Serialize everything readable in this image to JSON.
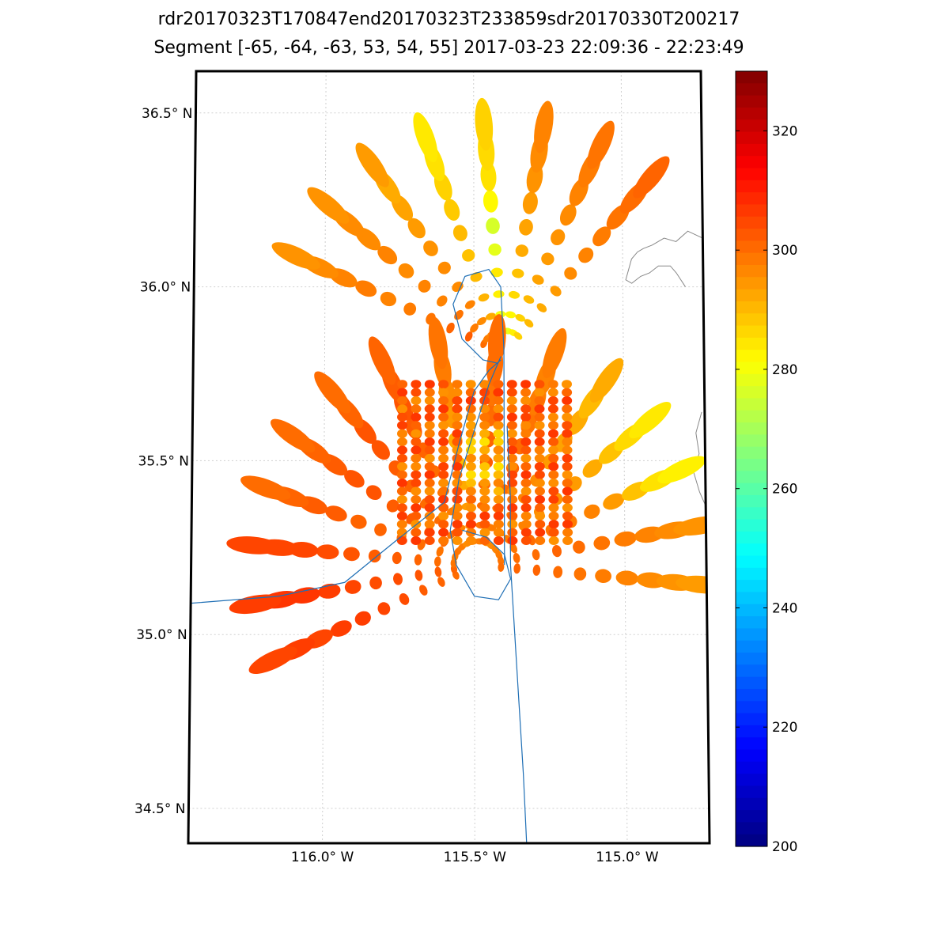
{
  "chart_data": {
    "type": "scatter",
    "title": "rdr20170323T170847end20170323T233859sdr20170330T200217",
    "subtitle": "Segment [-65, -64, -63, 53, 54, 55] 2017-03-23 22:09:36 - 22:23:49",
    "projection": "map",
    "x_ticks": [
      "116.0° W",
      "115.5° W",
      "115.0° W"
    ],
    "x_tick_values": [
      -116.0,
      -115.5,
      -115.0
    ],
    "y_ticks": [
      "36.5° N",
      "36.0° N",
      "35.5° N",
      "35.0° N",
      "34.5° N"
    ],
    "y_tick_values": [
      36.5,
      36.0,
      35.5,
      35.0,
      34.5
    ],
    "xlim": [
      -116.44,
      -114.73
    ],
    "ylim": [
      34.4,
      36.62
    ],
    "grid": true,
    "colorbar": {
      "min": 200,
      "max": 330,
      "ticks": [
        "200",
        "220",
        "240",
        "260",
        "280",
        "300",
        "320"
      ],
      "tick_values": [
        200,
        220,
        240,
        260,
        280,
        300,
        320
      ],
      "colormap": "jet"
    },
    "radial_center": {
      "lon": -115.4,
      "lat": 35.81
    },
    "radial_center_south": {
      "lon": -115.49,
      "lat": 35.2
    },
    "swath": {
      "lon_range": [
        -115.74,
        -115.19
      ],
      "lat_range": [
        35.27,
        35.72
      ],
      "rows": 20,
      "cols": 13,
      "base_value": 301
    },
    "north_spokes": [
      {
        "az": -65,
        "n": 10,
        "values": [
          300,
          302,
          301,
          299,
          298,
          297,
          298,
          297,
          296,
          295
        ]
      },
      {
        "az": -50,
        "n": 10,
        "values": [
          298,
          298,
          299,
          297,
          297,
          296,
          297,
          296,
          296,
          295
        ]
      },
      {
        "az": -35,
        "n": 10,
        "values": [
          297,
          296,
          297,
          296,
          296,
          295,
          294,
          293,
          292,
          294
        ]
      },
      {
        "az": -20,
        "n": 10,
        "values": [
          293,
          292,
          291,
          290,
          289,
          290,
          288,
          287,
          285,
          284
        ]
      },
      {
        "az": -5,
        "n": 10,
        "values": [
          275,
          280,
          283,
          284,
          278,
          276,
          282,
          285,
          286,
          287
        ]
      },
      {
        "az": 10,
        "n": 10,
        "values": [
          278,
          282,
          286,
          289,
          292,
          293,
          294,
          295,
          296,
          297
        ]
      },
      {
        "az": 25,
        "n": 10,
        "values": [
          283,
          287,
          290,
          293,
          294,
          295,
          296,
          297,
          298,
          299
        ]
      },
      {
        "az": 40,
        "n": 10,
        "values": [
          287,
          290,
          292,
          294,
          296,
          297,
          298,
          299,
          300,
          301
        ]
      }
    ],
    "south_spokes": [
      {
        "az": -115,
        "n": 10,
        "values": [
          300,
          301,
          302,
          304,
          305,
          306,
          306,
          305,
          306,
          305
        ]
      },
      {
        "az": -100,
        "n": 10,
        "values": [
          301,
          302,
          303,
          304,
          304,
          305,
          306,
          307,
          307,
          306
        ]
      },
      {
        "az": -85,
        "n": 10,
        "values": [
          299,
          300,
          301,
          302,
          302,
          303,
          304,
          305,
          305,
          305
        ]
      },
      {
        "az": -70,
        "n": 10,
        "values": [
          298,
          299,
          300,
          300,
          301,
          301,
          302,
          302,
          301,
          300
        ]
      },
      {
        "az": -55,
        "n": 10,
        "values": [
          299,
          300,
          301,
          302,
          302,
          303,
          303,
          302,
          301,
          300
        ]
      },
      {
        "az": -40,
        "n": 10,
        "values": [
          298,
          299,
          300,
          300,
          301,
          302,
          303,
          303,
          301,
          300
        ]
      },
      {
        "az": -25,
        "n": 10,
        "values": [
          296,
          297,
          298,
          299,
          300,
          301,
          302,
          303,
          302,
          301
        ]
      },
      {
        "az": -10,
        "n": 10,
        "values": [
          297,
          296,
          294,
          292,
          290,
          292,
          294,
          296,
          298,
          299
        ]
      },
      {
        "az": 5,
        "n": 10,
        "values": [
          298,
          299,
          300,
          301,
          302,
          301,
          300,
          299,
          300,
          300
        ]
      },
      {
        "az": 20,
        "n": 10,
        "values": [
          297,
          298,
          299,
          300,
          301,
          300,
          299,
          298,
          297,
          298
        ]
      },
      {
        "az": 35,
        "n": 10,
        "values": [
          296,
          297,
          298,
          297,
          296,
          294,
          293,
          292,
          290,
          292
        ]
      },
      {
        "az": 50,
        "n": 10,
        "values": [
          297,
          298,
          297,
          296,
          295,
          294,
          292,
          289,
          286,
          284
        ]
      },
      {
        "az": 65,
        "n": 10,
        "values": [
          298,
          299,
          300,
          299,
          298,
          297,
          294,
          289,
          285,
          283
        ]
      },
      {
        "az": 80,
        "n": 10,
        "values": [
          299,
          300,
          300,
          301,
          300,
          299,
          298,
          297,
          296,
          295
        ]
      },
      {
        "az": 95,
        "n": 10,
        "values": [
          300,
          301,
          301,
          300,
          299,
          298,
          297,
          296,
          295,
          294
        ]
      }
    ],
    "flight_tracks": [
      [
        [
          -116.44,
          35.09
        ],
        [
          -116.15,
          35.11
        ],
        [
          -115.93,
          35.15
        ],
        [
          -115.76,
          35.27
        ],
        [
          -115.6,
          35.38
        ],
        [
          -115.55,
          35.55
        ],
        [
          -115.5,
          35.7
        ],
        [
          -115.45,
          35.76
        ],
        [
          -115.41,
          35.79
        ]
      ],
      [
        [
          -115.4,
          35.2
        ],
        [
          -115.4,
          35.55
        ],
        [
          -115.4,
          35.82
        ],
        [
          -115.41,
          36.0
        ],
        [
          -115.45,
          36.05
        ],
        [
          -115.53,
          36.03
        ],
        [
          -115.57,
          35.95
        ],
        [
          -115.54,
          35.85
        ],
        [
          -115.47,
          35.79
        ],
        [
          -115.42,
          35.78
        ]
      ],
      [
        [
          -115.39,
          35.6
        ],
        [
          -115.38,
          35.4
        ],
        [
          -115.38,
          35.2
        ],
        [
          -115.36,
          34.9
        ],
        [
          -115.34,
          34.6
        ],
        [
          -115.33,
          34.4
        ]
      ],
      [
        [
          -115.41,
          35.8
        ],
        [
          -115.45,
          35.72
        ],
        [
          -115.55,
          35.45
        ],
        [
          -115.58,
          35.3
        ],
        [
          -115.56,
          35.2
        ],
        [
          -115.5,
          35.11
        ],
        [
          -115.42,
          35.1
        ],
        [
          -115.38,
          35.16
        ],
        [
          -115.4,
          35.23
        ],
        [
          -115.46,
          35.28
        ],
        [
          -115.54,
          35.3
        ]
      ]
    ],
    "coastlines": [
      [
        [
          -114.73,
          36.14
        ],
        [
          -114.78,
          36.16
        ],
        [
          -114.82,
          36.13
        ],
        [
          -114.86,
          36.14
        ],
        [
          -114.9,
          36.12
        ],
        [
          -114.93,
          36.11
        ],
        [
          -114.95,
          36.1
        ],
        [
          -114.97,
          36.08
        ],
        [
          -114.99,
          36.02
        ],
        [
          -114.97,
          36.01
        ],
        [
          -114.94,
          36.03
        ],
        [
          -114.91,
          36.04
        ],
        [
          -114.88,
          36.06
        ],
        [
          -114.84,
          36.06
        ],
        [
          -114.82,
          36.04
        ],
        [
          -114.79,
          36.0
        ]
      ],
      [
        [
          -114.74,
          35.64
        ],
        [
          -114.76,
          35.58
        ],
        [
          -114.75,
          35.52
        ],
        [
          -114.77,
          35.47
        ],
        [
          -114.75,
          35.41
        ],
        [
          -114.73,
          35.37
        ]
      ]
    ]
  }
}
